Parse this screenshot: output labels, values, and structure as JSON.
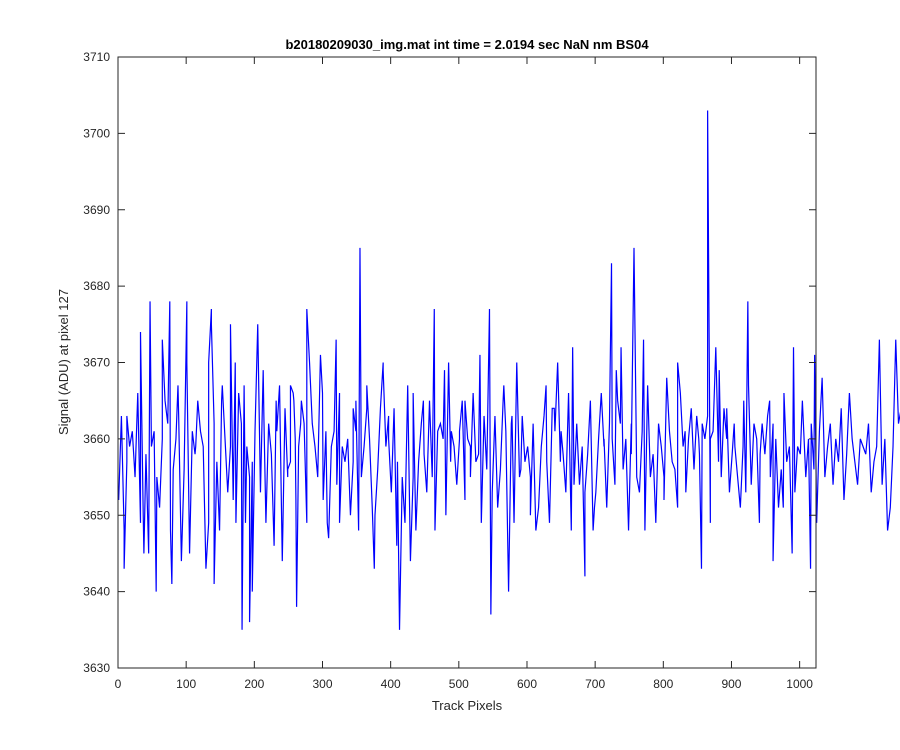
{
  "chart_data": {
    "type": "line",
    "title": "b20180209030_img.mat int time = 2.0194 sec  NaN nm BS04",
    "xlabel": "Track Pixels",
    "ylabel": "Signal (ADU) at pixel 127",
    "xlim": [
      0,
      1024
    ],
    "ylim": [
      3630,
      3710
    ],
    "x_ticks": [
      0,
      100,
      200,
      300,
      400,
      500,
      600,
      700,
      800,
      900,
      1000
    ],
    "y_ticks": [
      3630,
      3640,
      3650,
      3660,
      3670,
      3680,
      3690,
      3700,
      3710
    ],
    "grid": false,
    "legend": "none",
    "series": [
      {
        "color": "#0000ff",
        "x_start": 1,
        "x_step": 4,
        "values": [
          3652,
          3663,
          3648,
          3657,
          3659,
          3661,
          3655,
          3666,
          3649,
          3650,
          3658,
          3645,
          3659,
          3661,
          3655,
          3651,
          3660,
          3665,
          3662,
          3648,
          3656,
          3660,
          3663,
          3644,
          3656,
          3678,
          3645,
          3661,
          3658,
          3665,
          3661,
          3659,
          3643,
          3649,
          3677,
          3662,
          3657,
          3648,
          3667,
          3660,
          3653,
          3659,
          3652,
          3649,
          3666,
          3662,
          3667,
          3659,
          3655,
          3657,
          3661,
          3675,
          3653,
          3669,
          3649,
          3662,
          3658,
          3646,
          3661,
          3667,
          3644,
          3664,
          3655,
          3657,
          3666,
          3652,
          3659,
          3665,
          3662,
          3649,
          3670,
          3662,
          3659,
          3655,
          3671,
          3652,
          3661,
          3647,
          3659,
          3661,
          3654,
          3666,
          3659,
          3657,
          3660,
          3650,
          3657,
          3661,
          3648,
          3655,
          3659,
          3664,
          3660,
          3651,
          3650,
          3656,
          3664,
          3670,
          3659,
          3663,
          3653,
          3664,
          3646,
          3635,
          3655,
          3649,
          3667,
          3644,
          3655,
          3648,
          3657,
          3662,
          3658,
          3653,
          3665,
          3655,
          3648,
          3661,
          3662,
          3660,
          3650,
          3670,
          3661,
          3659,
          3654,
          3660,
          3665,
          3652,
          3660,
          3659,
          3666,
          3657,
          3658,
          3649,
          3663,
          3656,
          3677,
          3653,
          3663,
          3651,
          3656,
          3665,
          3661,
          3640,
          3662,
          3649,
          3670,
          3655,
          3663,
          3657,
          3659,
          3655,
          3662,
          3648,
          3651,
          3659,
          3663,
          3657,
          3649,
          3664,
          3661,
          3670,
          3657,
          3658,
          3653,
          3666,
          3648,
          3654,
          3662,
          3654,
          3659,
          3642,
          3658,
          3665,
          3648,
          3653,
          3660,
          3666,
          3659,
          3651,
          3662,
          3660,
          3654,
          3665,
          3662,
          3656,
          3660,
          3648,
          3662,
          3685,
          3655,
          3653,
          3661,
          3648,
          3667,
          3655,
          3658,
          3649,
          3662,
          3659,
          3655,
          3668,
          3661,
          3657,
          3656,
          3651,
          3666,
          3659,
          3653,
          3660,
          3664,
          3656,
          3663,
          3658,
          3662,
          3660,
          3663,
          3649,
          3661,
          3672,
          3657,
          3655,
          3664,
          3660,
          3653,
          3658,
          3659,
          3655,
          3651,
          3659,
          3653,
          3667,
          3654,
          3662,
          3660,
          3649,
          3662,
          3658,
          3663,
          3655,
          3662,
          3660,
          3651,
          3656,
          3666,
          3657,
          3659,
          3645,
          3653,
          3659,
          3658,
          3663,
          3655,
          3660,
          3662,
          3656,
          3649,
          3661,
          3668,
          3655,
          3659,
          3662,
          3654,
          3660,
          3657,
          3664,
          3652,
          3658,
          3666,
          3660,
          3657,
          3654,
          3660,
          3659,
          3658,
          3662,
          3653,
          3657,
          3659,
          3673,
          3654,
          3660,
          3648,
          3651,
          3659,
          3673,
          3662,
          3664,
          3648,
          3658,
          3657,
          3661,
          3653,
          3663,
          3659,
          3644,
          3655,
          3659,
          3661,
          3655,
          3667,
          3657,
          3650,
          3663,
          3671,
          3649,
          3656,
          3659,
          3662,
          3669,
          3656,
          3659,
          3660,
          3656,
          3665,
          3651,
          3658,
          3664,
          3660,
          3660,
          3655,
          3659,
          3648,
          3666,
          3657,
          3651,
          3653,
          3651,
          3674,
          3662,
          3649,
          3660,
          3664,
          3653,
          3666,
          3657,
          3651,
          3674,
          3640,
          3657,
          3659,
          3665,
          3651,
          3659,
          3655,
          3663,
          3654,
          3657,
          3660,
          3653,
          3651,
          3658,
          3663,
          3660,
          3668,
          3659,
          3657,
          3648,
          3649,
          3661,
          3654,
          3657,
          3662,
          3658,
          3659,
          3655,
          3652,
          3649,
          3661,
          3657,
          3665,
          3653,
          3659,
          3648,
          3655,
          3662,
          3657,
          3655,
          3662,
          3648,
          3669,
          3657,
          3661,
          3669,
          3651,
          3677,
          3649,
          3656,
          3663,
          3655,
          3666,
          3655,
          3649,
          3655,
          3659,
          3665,
          3662,
          3660,
          3666,
          3663,
          3670,
          3664,
          3678,
          3660,
          3664,
          3648,
          3662,
          3657,
          3659,
          3654,
          3671,
          3661,
          3663,
          3654,
          3644,
          3662,
          3659,
          3657,
          3664,
          3656,
          3650,
          3662,
          3653,
          3651,
          3652,
          3660,
          3654,
          3657,
          3651,
          3658,
          3662,
          3651,
          3659,
          3664,
          3660,
          3656,
          3661,
          3648,
          3655,
          3652,
          3659,
          3659,
          3660,
          3656,
          3647,
          3660,
          3660,
          3659,
          3663,
          3660,
          3669,
          3671,
          3655,
          3664,
          3658,
          3662,
          3657,
          3660,
          3658,
          3660,
          3657,
          3660,
          3665,
          3657,
          3655,
          3659,
          3656,
          3664,
          3662,
          3656,
          3651,
          3660,
          3656,
          3663,
          3650,
          3662,
          3659,
          3656,
          3640,
          3649,
          3651,
          3671,
          3663,
          3657,
          3662,
          3651,
          3651,
          3663,
          3661,
          3656,
          3643,
          3660,
          3661,
          3666,
          3649,
          3657,
          3666,
          3661,
          3660,
          3659,
          3660,
          3665,
          3655,
          3659,
          3658,
          3653,
          3657,
          3659,
          3649,
          3652,
          3659,
          3662,
          3658,
          3658,
          3669,
          3658,
          3659,
          3655,
          3664,
          3649,
          3667,
          3661,
          3653,
          3665,
          3665,
          3649,
          3662,
          3657,
          3657,
          3650,
          3660,
          3653,
          3655,
          3666,
          3643,
          3650,
          3666,
          3657,
          3654,
          3663,
          3657,
          3668,
          3659,
          3661,
          3651,
          3660,
          3665,
          3652,
          3667,
          3663,
          3640,
          3651,
          3658,
          3660,
          3658,
          3655,
          3662,
          3659,
          3651,
          3659,
          3646,
          3660,
          3671,
          3657,
          3662,
          3654,
          3661,
          3656,
          3664,
          3656,
          3661,
          3650,
          3657,
          3666,
          3656,
          3665,
          3663,
          3655,
          3660,
          3653,
          3662,
          3656,
          3659,
          3661,
          3659,
          3667,
          3656,
          3663,
          3652,
          3651,
          3660,
          3657,
          3660,
          3660,
          3663,
          3650,
          3661,
          3653,
          3659,
          3650,
          3656,
          3666,
          3667,
          3654,
          3660,
          3660,
          3671
        ]
      }
    ],
    "points": [
      [
        1,
        3652
      ],
      [
        9,
        3643
      ],
      [
        13,
        3663
      ],
      [
        33,
        3674
      ],
      [
        38,
        3645
      ],
      [
        47,
        3678
      ],
      [
        56,
        3640
      ],
      [
        65,
        3673
      ],
      [
        76,
        3678
      ],
      [
        79,
        3641
      ],
      [
        88,
        3667
      ],
      [
        101,
        3670
      ],
      [
        114,
        3659
      ],
      [
        133,
        3670
      ],
      [
        137,
        3675
      ],
      [
        141,
        3641
      ],
      [
        152,
        3665
      ],
      [
        165,
        3675
      ],
      [
        172,
        3670
      ],
      [
        182,
        3635
      ],
      [
        187,
        3649
      ],
      [
        193,
        3636
      ],
      [
        197,
        3640
      ],
      [
        214,
        3663
      ],
      [
        232,
        3665
      ],
      [
        249,
        3656
      ],
      [
        253,
        3667
      ],
      [
        258,
        3665
      ],
      [
        260,
        3660
      ],
      [
        262,
        3638
      ],
      [
        268,
        3662
      ],
      [
        277,
        3677
      ],
      [
        293,
        3655
      ],
      [
        300,
        3666
      ],
      [
        307,
        3649
      ],
      [
        320,
        3673
      ],
      [
        325,
        3649
      ],
      [
        345,
        3664
      ],
      [
        349,
        3665
      ],
      [
        355,
        3685
      ],
      [
        365,
        3667
      ],
      [
        376,
        3643
      ],
      [
        389,
        3669
      ],
      [
        397,
        3660
      ],
      [
        410,
        3657
      ],
      [
        433,
        3666
      ],
      [
        448,
        3665
      ],
      [
        464,
        3677
      ],
      [
        479,
        3669
      ],
      [
        488,
        3657
      ],
      [
        501,
        3661
      ],
      [
        509,
        3665
      ],
      [
        517,
        3655
      ],
      [
        531,
        3671
      ],
      [
        547,
        3637
      ],
      [
        566,
        3667
      ],
      [
        578,
        3663
      ],
      [
        591,
        3656
      ],
      [
        605,
        3650
      ],
      [
        628,
        3667
      ],
      [
        640,
        3664
      ],
      [
        650,
        3661
      ],
      [
        667,
        3672
      ],
      [
        685,
        3653
      ],
      [
        699,
        3651
      ],
      [
        713,
        3660
      ],
      [
        724,
        3683
      ],
      [
        731,
        3669
      ],
      [
        738,
        3672
      ],
      [
        753,
        3658
      ],
      [
        771,
        3673
      ],
      [
        786,
        3656
      ],
      [
        801,
        3652
      ],
      [
        821,
        3670
      ],
      [
        832,
        3661
      ],
      [
        852,
        3660
      ],
      [
        856,
        3643
      ],
      [
        865,
        3703
      ],
      [
        869,
        3660
      ],
      [
        882,
        3669
      ],
      [
        893,
        3664
      ],
      [
        904,
        3662
      ],
      [
        918,
        3665
      ],
      [
        924,
        3678
      ],
      [
        942,
        3658
      ],
      [
        956,
        3665
      ],
      [
        961,
        3644
      ],
      [
        976,
        3651
      ],
      [
        991,
        3672
      ],
      [
        1004,
        3665
      ],
      [
        1016,
        3643
      ],
      [
        1022,
        3671
      ]
    ]
  }
}
